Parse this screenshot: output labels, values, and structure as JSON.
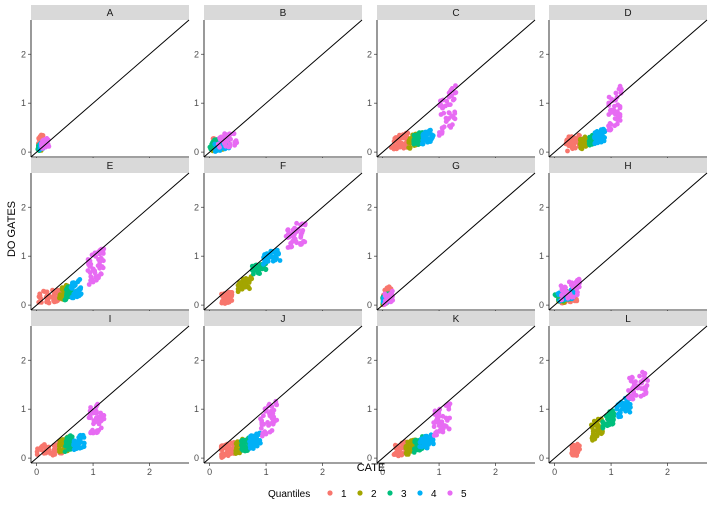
{
  "chart_data": {
    "type": "scatter",
    "xlabel": "CATE",
    "ylabel": "DO GATES",
    "xlim": [
      -0.1,
      2.7
    ],
    "ylim": [
      -0.1,
      2.7
    ],
    "xticks": [
      0,
      1,
      2
    ],
    "yticks": [
      0,
      1,
      2
    ],
    "reference_line": "y = x",
    "grid": false,
    "legend": {
      "title": "Quantiles",
      "position": "bottom",
      "entries": [
        "1",
        "2",
        "3",
        "4",
        "5"
      ],
      "colors": [
        "#F8766D",
        "#A3A500",
        "#00BF7D",
        "#00B0F6",
        "#E76BF3"
      ]
    },
    "panels": [
      {
        "label": "A",
        "groups": [
          {
            "q": "1",
            "x_range": [
              0.02,
              0.12
            ],
            "y_range": [
              0.05,
              0.38
            ],
            "n": 30
          },
          {
            "q": "2",
            "x_range": [
              0.03,
              0.11
            ],
            "y_range": [
              0.0,
              0.2
            ],
            "n": 25
          },
          {
            "q": "3",
            "x_range": [
              0.02,
              0.1
            ],
            "y_range": [
              0.02,
              0.18
            ],
            "n": 25
          },
          {
            "q": "4",
            "x_range": [
              0.05,
              0.13
            ],
            "y_range": [
              0.03,
              0.22
            ],
            "n": 25
          },
          {
            "q": "5",
            "x_range": [
              0.08,
              0.22
            ],
            "y_range": [
              0.05,
              0.3
            ],
            "n": 30
          }
        ]
      },
      {
        "label": "B",
        "groups": [
          {
            "q": "1",
            "x_range": [
              0.05,
              0.3
            ],
            "y_range": [
              0.05,
              0.35
            ],
            "n": 30
          },
          {
            "q": "2",
            "x_range": [
              0.05,
              0.3
            ],
            "y_range": [
              0.0,
              0.25
            ],
            "n": 25
          },
          {
            "q": "3",
            "x_range": [
              0.0,
              0.25
            ],
            "y_range": [
              0.05,
              0.3
            ],
            "n": 25
          },
          {
            "q": "4",
            "x_range": [
              0.05,
              0.35
            ],
            "y_range": [
              0.0,
              0.25
            ],
            "n": 25
          },
          {
            "q": "5",
            "x_range": [
              0.15,
              0.5
            ],
            "y_range": [
              0.05,
              0.45
            ],
            "n": 30
          }
        ]
      },
      {
        "label": "C",
        "groups": [
          {
            "q": "1",
            "x_range": [
              0.15,
              0.45
            ],
            "y_range": [
              0.0,
              0.4
            ],
            "n": 40
          },
          {
            "q": "2",
            "x_range": [
              0.45,
              0.6
            ],
            "y_range": [
              0.05,
              0.4
            ],
            "n": 35
          },
          {
            "q": "3",
            "x_range": [
              0.55,
              0.72
            ],
            "y_range": [
              0.1,
              0.45
            ],
            "n": 35
          },
          {
            "q": "4",
            "x_range": [
              0.7,
              0.9
            ],
            "y_range": [
              0.15,
              0.5
            ],
            "n": 35
          },
          {
            "q": "5",
            "x_range": [
              1.0,
              1.3
            ],
            "y_range": [
              0.3,
              1.4
            ],
            "n": 45
          }
        ]
      },
      {
        "label": "D",
        "groups": [
          {
            "q": "1",
            "x_range": [
              0.2,
              0.45
            ],
            "y_range": [
              0.0,
              0.4
            ],
            "n": 40
          },
          {
            "q": "2",
            "x_range": [
              0.45,
              0.6
            ],
            "y_range": [
              0.05,
              0.35
            ],
            "n": 35
          },
          {
            "q": "3",
            "x_range": [
              0.6,
              0.72
            ],
            "y_range": [
              0.1,
              0.4
            ],
            "n": 35
          },
          {
            "q": "4",
            "x_range": [
              0.7,
              0.9
            ],
            "y_range": [
              0.15,
              0.5
            ],
            "n": 35
          },
          {
            "q": "5",
            "x_range": [
              0.95,
              1.2
            ],
            "y_range": [
              0.4,
              1.4
            ],
            "n": 45
          }
        ]
      },
      {
        "label": "E",
        "groups": [
          {
            "q": "1",
            "x_range": [
              0.0,
              0.45
            ],
            "y_range": [
              0.0,
              0.35
            ],
            "n": 45
          },
          {
            "q": "2",
            "x_range": [
              0.4,
              0.55
            ],
            "y_range": [
              0.05,
              0.45
            ],
            "n": 35
          },
          {
            "q": "3",
            "x_range": [
              0.5,
              0.65
            ],
            "y_range": [
              0.1,
              0.45
            ],
            "n": 35
          },
          {
            "q": "4",
            "x_range": [
              0.6,
              0.8
            ],
            "y_range": [
              0.1,
              0.55
            ],
            "n": 35
          },
          {
            "q": "5",
            "x_range": [
              0.9,
              1.2
            ],
            "y_range": [
              0.4,
              1.2
            ],
            "n": 45
          }
        ]
      },
      {
        "label": "F",
        "groups": [
          {
            "q": "1",
            "x_range": [
              0.2,
              0.4
            ],
            "y_range": [
              0.0,
              0.3
            ],
            "n": 40
          },
          {
            "q": "2",
            "x_range": [
              0.5,
              0.75
            ],
            "y_range": [
              0.25,
              0.6
            ],
            "n": 35
          },
          {
            "q": "3",
            "x_range": [
              0.75,
              1.0
            ],
            "y_range": [
              0.6,
              0.9
            ],
            "n": 35
          },
          {
            "q": "4",
            "x_range": [
              0.95,
              1.25
            ],
            "y_range": [
              0.8,
              1.15
            ],
            "n": 35
          },
          {
            "q": "5",
            "x_range": [
              1.35,
              1.7
            ],
            "y_range": [
              1.1,
              1.75
            ],
            "n": 45
          }
        ]
      },
      {
        "label": "G",
        "groups": [
          {
            "q": "1",
            "x_range": [
              0.0,
              0.15
            ],
            "y_range": [
              0.0,
              0.4
            ],
            "n": 30
          },
          {
            "q": "2",
            "x_range": [
              0.0,
              0.1
            ],
            "y_range": [
              0.0,
              0.2
            ],
            "n": 20
          },
          {
            "q": "3",
            "x_range": [
              0.0,
              0.12
            ],
            "y_range": [
              0.0,
              0.25
            ],
            "n": 20
          },
          {
            "q": "4",
            "x_range": [
              0.0,
              0.1
            ],
            "y_range": [
              0.0,
              0.2
            ],
            "n": 20
          },
          {
            "q": "5",
            "x_range": [
              0.02,
              0.18
            ],
            "y_range": [
              0.0,
              0.3
            ],
            "n": 25
          }
        ]
      },
      {
        "label": "H",
        "groups": [
          {
            "q": "1",
            "x_range": [
              0.1,
              0.4
            ],
            "y_range": [
              0.0,
              0.35
            ],
            "n": 35
          },
          {
            "q": "2",
            "x_range": [
              0.05,
              0.3
            ],
            "y_range": [
              0.0,
              0.25
            ],
            "n": 25
          },
          {
            "q": "3",
            "x_range": [
              0.0,
              0.25
            ],
            "y_range": [
              0.05,
              0.3
            ],
            "n": 25
          },
          {
            "q": "4",
            "x_range": [
              0.05,
              0.35
            ],
            "y_range": [
              0.05,
              0.35
            ],
            "n": 30
          },
          {
            "q": "5",
            "x_range": [
              0.1,
              0.45
            ],
            "y_range": [
              0.05,
              0.55
            ],
            "n": 35
          }
        ]
      },
      {
        "label": "I",
        "groups": [
          {
            "q": "1",
            "x_range": [
              0.0,
              0.45
            ],
            "y_range": [
              0.0,
              0.35
            ],
            "n": 45
          },
          {
            "q": "2",
            "x_range": [
              0.4,
              0.55
            ],
            "y_range": [
              0.05,
              0.45
            ],
            "n": 35
          },
          {
            "q": "3",
            "x_range": [
              0.5,
              0.65
            ],
            "y_range": [
              0.1,
              0.5
            ],
            "n": 35
          },
          {
            "q": "4",
            "x_range": [
              0.65,
              0.85
            ],
            "y_range": [
              0.15,
              0.5
            ],
            "n": 35
          },
          {
            "q": "5",
            "x_range": [
              0.9,
              1.2
            ],
            "y_range": [
              0.4,
              1.2
            ],
            "n": 45
          }
        ]
      },
      {
        "label": "J",
        "groups": [
          {
            "q": "1",
            "x_range": [
              0.2,
              0.45
            ],
            "y_range": [
              0.0,
              0.35
            ],
            "n": 40
          },
          {
            "q": "2",
            "x_range": [
              0.45,
              0.6
            ],
            "y_range": [
              0.05,
              0.4
            ],
            "n": 35
          },
          {
            "q": "3",
            "x_range": [
              0.55,
              0.75
            ],
            "y_range": [
              0.1,
              0.45
            ],
            "n": 35
          },
          {
            "q": "4",
            "x_range": [
              0.7,
              0.9
            ],
            "y_range": [
              0.15,
              0.55
            ],
            "n": 35
          },
          {
            "q": "5",
            "x_range": [
              0.9,
              1.2
            ],
            "y_range": [
              0.4,
              1.2
            ],
            "n": 45
          }
        ]
      },
      {
        "label": "K",
        "groups": [
          {
            "q": "1",
            "x_range": [
              0.2,
              0.45
            ],
            "y_range": [
              0.0,
              0.35
            ],
            "n": 40
          },
          {
            "q": "2",
            "x_range": [
              0.4,
              0.6
            ],
            "y_range": [
              0.05,
              0.4
            ],
            "n": 35
          },
          {
            "q": "3",
            "x_range": [
              0.55,
              0.72
            ],
            "y_range": [
              0.1,
              0.45
            ],
            "n": 35
          },
          {
            "q": "4",
            "x_range": [
              0.65,
              0.9
            ],
            "y_range": [
              0.15,
              0.5
            ],
            "n": 35
          },
          {
            "q": "5",
            "x_range": [
              0.9,
              1.2
            ],
            "y_range": [
              0.4,
              1.15
            ],
            "n": 45
          }
        ]
      },
      {
        "label": "L",
        "groups": [
          {
            "q": "1",
            "x_range": [
              0.3,
              0.45
            ],
            "y_range": [
              0.0,
              0.35
            ],
            "n": 40
          },
          {
            "q": "2",
            "x_range": [
              0.65,
              0.85
            ],
            "y_range": [
              0.35,
              0.85
            ],
            "n": 35
          },
          {
            "q": "3",
            "x_range": [
              0.85,
              1.05
            ],
            "y_range": [
              0.6,
              1.0
            ],
            "n": 35
          },
          {
            "q": "4",
            "x_range": [
              1.1,
              1.35
            ],
            "y_range": [
              0.8,
              1.3
            ],
            "n": 35
          },
          {
            "q": "5",
            "x_range": [
              1.3,
              1.65
            ],
            "y_range": [
              1.15,
              1.8
            ],
            "n": 45
          }
        ]
      }
    ]
  }
}
